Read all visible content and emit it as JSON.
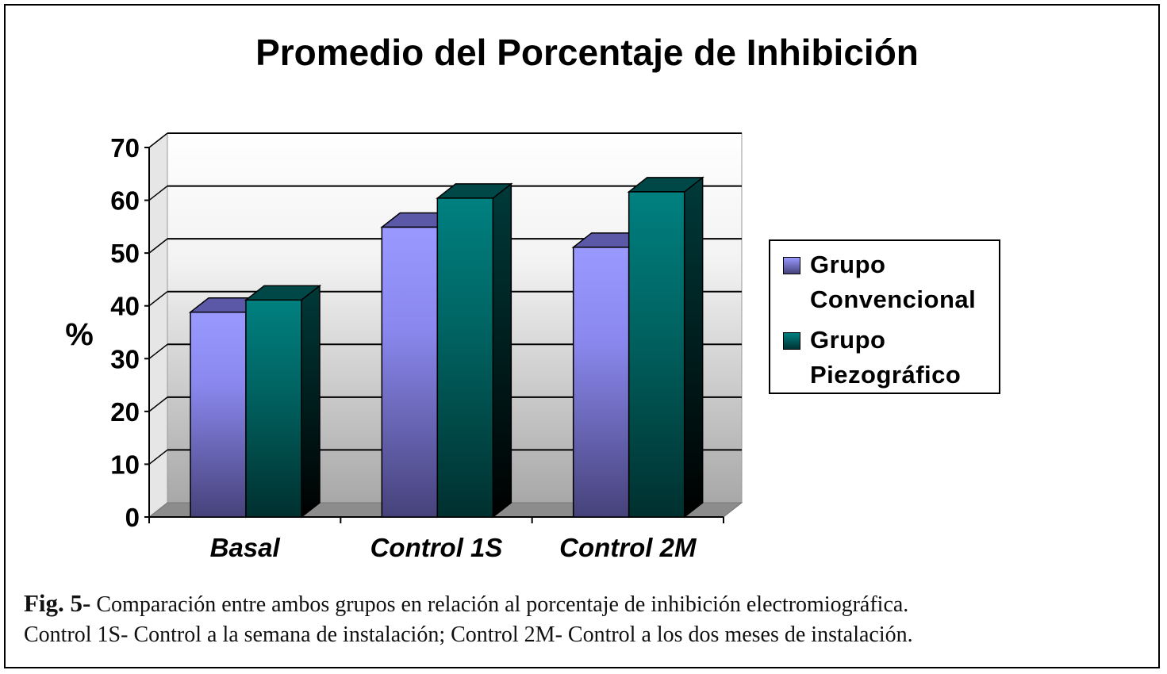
{
  "chart_data": {
    "type": "bar",
    "title": "Promedio del Porcentaje de Inhibición",
    "xlabel": "",
    "ylabel": "%",
    "ylim": [
      0,
      70
    ],
    "yticks": [
      "0",
      "10",
      "20",
      "30",
      "40",
      "50",
      "60",
      "70"
    ],
    "categories": [
      "Basal",
      "Control 1S",
      "Control 2M"
    ],
    "series": [
      {
        "name": "Grupo Convencional",
        "values": [
          38.8,
          54.9,
          51.1
        ],
        "color": "#9999ff",
        "dark": "#46427a"
      },
      {
        "name": "Grupo Piezográfico",
        "values": [
          41.1,
          60.4,
          61.6
        ],
        "color": "#008080",
        "dark": "#003333"
      }
    ],
    "legend_position": "right",
    "grid": true
  },
  "legend": {
    "items": [
      {
        "line1": "Grupo",
        "line2": "Convencional"
      },
      {
        "line1": "Grupo",
        "line2": "Piezográfico"
      }
    ]
  },
  "caption": {
    "label": "Fig. 5-",
    "line1": "Comparación entre ambos grupos en relación al porcentaje de inhibición electromiográfica.",
    "line2": "Control 1S- Control a la semana de instalación; Control 2M- Control a los dos meses de instalación."
  }
}
